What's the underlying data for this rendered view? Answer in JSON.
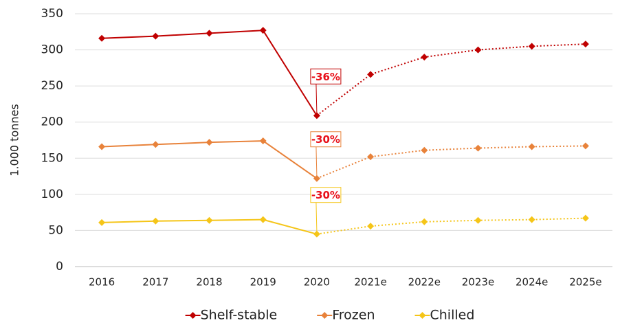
{
  "chart_data": {
    "type": "line",
    "y_label": "1.000 tonnes",
    "categories": [
      "2016",
      "2017",
      "2018",
      "2019",
      "2020",
      "2021e",
      "2022e",
      "2023e",
      "2024e",
      "2025e"
    ],
    "series": [
      {
        "name": "Shelf-stable",
        "color": "#c00000",
        "values": [
          316,
          319,
          323,
          327,
          209,
          266,
          290,
          300,
          305,
          308
        ]
      },
      {
        "name": "Frozen",
        "color": "#e8823a",
        "values": [
          166,
          169,
          172,
          174,
          122,
          152,
          161,
          164,
          166,
          167
        ]
      },
      {
        "name": "Chilled",
        "color": "#f5c518",
        "values": [
          61,
          63,
          64,
          65,
          45,
          56,
          62,
          64,
          65,
          67
        ]
      }
    ],
    "annotations": [
      "-36%",
      "-30%",
      "-30%"
    ],
    "ylim": [
      0,
      350
    ],
    "yticks": [
      0,
      50,
      100,
      150,
      200,
      250,
      300,
      350
    ],
    "grid": true,
    "legend": "bottom"
  }
}
